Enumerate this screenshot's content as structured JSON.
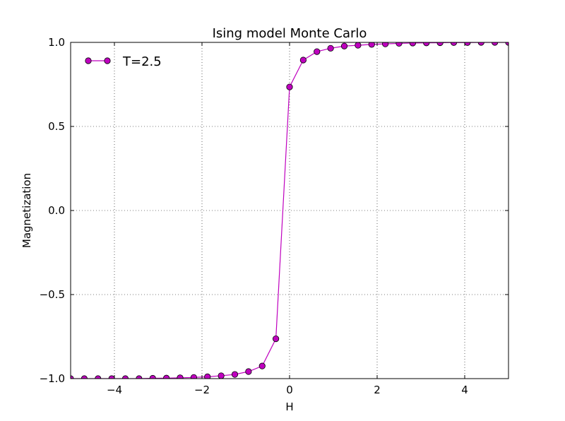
{
  "chart_data": {
    "type": "line",
    "title": "Ising model Monte Carlo",
    "xlabel": "H",
    "ylabel": "Magnetization",
    "xlim": [
      -5,
      5
    ],
    "ylim": [
      -1.0,
      1.0
    ],
    "xticks": [
      -4,
      -2,
      0,
      2,
      4
    ],
    "xtick_labels": [
      "−4",
      "−2",
      "0",
      "2",
      "4"
    ],
    "yticks": [
      -1.0,
      -0.5,
      0.0,
      0.5,
      1.0
    ],
    "ytick_labels": [
      "−1.0",
      "−0.5",
      "0.0",
      "0.5",
      "1.0"
    ],
    "grid": true,
    "legend_position": "upper-left",
    "series": [
      {
        "name": "T=2.5",
        "color": "#bf00bf",
        "marker": "circle",
        "x": [
          -5.0,
          -4.6875,
          -4.375,
          -4.0625,
          -3.75,
          -3.4375,
          -3.125,
          -2.8125,
          -2.5,
          -2.1875,
          -1.875,
          -1.5625,
          -1.25,
          -0.9375,
          -0.625,
          -0.3125,
          0.0,
          0.3125,
          0.625,
          0.9375,
          1.25,
          1.5625,
          1.875,
          2.1875,
          2.5,
          2.8125,
          3.125,
          3.4375,
          3.75,
          4.0625,
          4.375,
          4.6875,
          5.0
        ],
        "y": [
          -1.0,
          -1.0,
          -1.0,
          -1.0,
          -1.0,
          -1.0,
          -0.998,
          -0.997,
          -0.995,
          -0.993,
          -0.989,
          -0.983,
          -0.975,
          -0.958,
          -0.925,
          -0.763,
          0.735,
          0.895,
          0.945,
          0.965,
          0.978,
          0.983,
          0.988,
          0.991,
          0.994,
          0.996,
          0.997,
          0.998,
          0.999,
          0.999,
          1.0,
          1.0,
          1.0
        ]
      }
    ]
  }
}
